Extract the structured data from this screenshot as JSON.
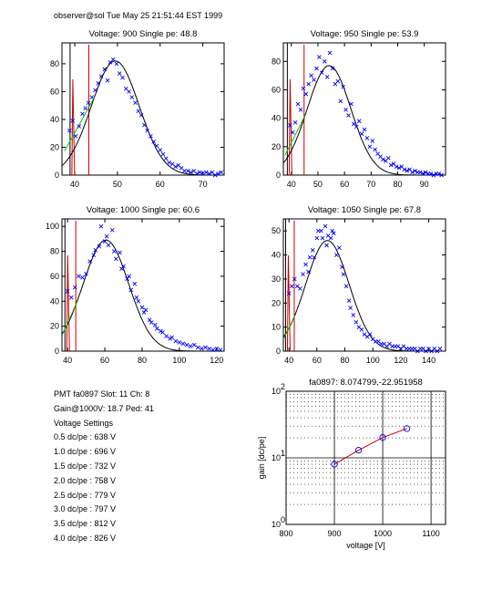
{
  "header": "observer@sol  Tue May 25 21:51:44 EST 1999",
  "pmt_info": {
    "line1": "PMT fa0897 Slot: 11 Ch: 8",
    "line2": "Gain@1000V: 18.7 Ped: 41",
    "settings_title": "Voltage Settings",
    "settings": [
      "0.5 dc/pe : 638 V",
      "1.0 dc/pe : 696 V",
      "1.5 dc/pe : 732 V",
      "2.0 dc/pe : 758 V",
      "2.5 dc/pe : 779 V",
      "3.0 dc/pe : 797 V",
      "3.5 dc/pe : 812 V",
      "4.0 dc/pe : 826 V"
    ]
  },
  "colors": {
    "data": "#0000ff",
    "fit": "#000000",
    "pedestal": "#cc0000",
    "low": "#00cc00"
  },
  "chart_data": [
    {
      "type": "scatter",
      "title": "Voltage: 900 Single pe: 48.8",
      "xlim": [
        37,
        75
      ],
      "ylim": [
        0,
        95
      ],
      "xticks": [
        40,
        50,
        60,
        70
      ],
      "yticks": [
        0,
        20,
        40,
        60,
        80
      ],
      "fit": {
        "amp": 82,
        "mean": 49.5,
        "sigma": 5.6
      },
      "markers": [
        38.9,
        43.3
      ],
      "points": [
        [
          38.8,
          32
        ],
        [
          39.5,
          39
        ],
        [
          40.2,
          28
        ],
        [
          41,
          35
        ],
        [
          41.8,
          44
        ],
        [
          42.5,
          48
        ],
        [
          43.2,
          52
        ],
        [
          44,
          56
        ],
        [
          44.8,
          61
        ],
        [
          45.5,
          66
        ],
        [
          46.2,
          71
        ],
        [
          47,
          76
        ],
        [
          47.7,
          68
        ],
        [
          48.3,
          81
        ],
        [
          49,
          83
        ],
        [
          49.8,
          80
        ],
        [
          50.5,
          73
        ],
        [
          51.2,
          70
        ],
        [
          52,
          62
        ],
        [
          52.7,
          60
        ],
        [
          53.4,
          56
        ],
        [
          54.2,
          52
        ],
        [
          54.9,
          46
        ],
        [
          55.6,
          43
        ],
        [
          56.3,
          36
        ],
        [
          57,
          32
        ],
        [
          57.8,
          28
        ],
        [
          58.5,
          24
        ],
        [
          59.2,
          21
        ],
        [
          60,
          18
        ],
        [
          60.7,
          15
        ],
        [
          61.4,
          12
        ],
        [
          62.1,
          9
        ],
        [
          62.9,
          8
        ],
        [
          63.6,
          6
        ],
        [
          64.3,
          7
        ],
        [
          65,
          5
        ],
        [
          65.7,
          3
        ],
        [
          66.5,
          3
        ],
        [
          67.2,
          2
        ],
        [
          67.9,
          3
        ],
        [
          68.6,
          1
        ],
        [
          69.3,
          2
        ],
        [
          70,
          1
        ],
        [
          70.8,
          2
        ],
        [
          71.5,
          1
        ],
        [
          72.2,
          2
        ],
        [
          72.9,
          0
        ],
        [
          73.6,
          1
        ],
        [
          74.3,
          2
        ]
      ]
    },
    {
      "type": "scatter",
      "title": "Voltage: 950 Single pe: 53.9",
      "xlim": [
        37,
        98
      ],
      "ylim": [
        0,
        93
      ],
      "xticks": [
        40,
        50,
        60,
        70,
        80,
        90
      ],
      "yticks": [
        0,
        20,
        40,
        60,
        80
      ],
      "fit": {
        "amp": 77,
        "mean": 54.2,
        "sigma": 8.2
      },
      "markers": [
        38.5,
        44.8
      ],
      "points": [
        [
          39.5,
          35
        ],
        [
          40.5,
          30
        ],
        [
          41.5,
          37
        ],
        [
          42.5,
          50
        ],
        [
          43.5,
          46
        ],
        [
          44.5,
          61
        ],
        [
          45.5,
          57
        ],
        [
          46.5,
          64
        ],
        [
          47.5,
          70
        ],
        [
          48.5,
          67
        ],
        [
          49.5,
          75
        ],
        [
          50.5,
          83
        ],
        [
          51.5,
          72
        ],
        [
          52.5,
          80
        ],
        [
          53.5,
          69
        ],
        [
          54.5,
          86
        ],
        [
          55.5,
          75
        ],
        [
          56.5,
          64
        ],
        [
          57.5,
          66
        ],
        [
          58.5,
          52
        ],
        [
          59.5,
          62
        ],
        [
          60.5,
          46
        ],
        [
          61.5,
          42
        ],
        [
          62.5,
          50
        ],
        [
          63.5,
          36
        ],
        [
          64.5,
          34
        ],
        [
          65.5,
          38
        ],
        [
          66.5,
          29
        ],
        [
          67.5,
          32
        ],
        [
          68.5,
          26
        ],
        [
          69.5,
          20
        ],
        [
          70.5,
          24
        ],
        [
          71.5,
          18
        ],
        [
          72.5,
          15
        ],
        [
          73.5,
          13
        ],
        [
          74.5,
          11
        ],
        [
          75.5,
          10
        ],
        [
          76.5,
          12
        ],
        [
          77.5,
          7
        ],
        [
          78.5,
          8
        ],
        [
          79.5,
          6
        ],
        [
          80.5,
          5
        ],
        [
          81.5,
          6
        ],
        [
          82.5,
          4
        ],
        [
          83.5,
          3
        ],
        [
          84.5,
          4
        ],
        [
          85.5,
          2
        ],
        [
          86.5,
          3
        ],
        [
          87.5,
          2
        ],
        [
          88.5,
          2
        ],
        [
          89.5,
          1
        ],
        [
          90.5,
          2
        ],
        [
          91.5,
          1
        ],
        [
          92.5,
          1
        ],
        [
          93.5,
          0
        ],
        [
          94.5,
          1
        ],
        [
          95.5,
          1
        ],
        [
          96.5,
          0
        ]
      ]
    },
    {
      "type": "scatter",
      "title": "Voltage: 1000 Single pe: 60.6",
      "xlim": [
        37,
        124
      ],
      "ylim": [
        0,
        106
      ],
      "xticks": [
        40,
        60,
        80,
        100,
        120
      ],
      "yticks": [
        0,
        20,
        40,
        60,
        80,
        100
      ],
      "fit": {
        "amp": 89,
        "mean": 60.6,
        "sigma": 12.2
      },
      "markers": [
        38.6,
        44.4
      ],
      "points": [
        [
          40,
          48
        ],
        [
          42,
          43
        ],
        [
          44,
          51
        ],
        [
          46,
          60
        ],
        [
          48,
          59
        ],
        [
          50,
          62
        ],
        [
          52,
          72
        ],
        [
          54,
          77
        ],
        [
          55,
          81
        ],
        [
          57,
          84
        ],
        [
          58,
          100
        ],
        [
          60,
          88
        ],
        [
          61,
          92
        ],
        [
          62,
          85
        ],
        [
          64,
          97
        ],
        [
          65,
          80
        ],
        [
          66,
          74
        ],
        [
          68,
          79
        ],
        [
          69,
          66
        ],
        [
          70,
          68
        ],
        [
          72,
          58
        ],
        [
          73,
          60
        ],
        [
          74,
          49
        ],
        [
          76,
          54
        ],
        [
          77,
          43
        ],
        [
          78,
          40
        ],
        [
          80,
          35
        ],
        [
          81,
          31
        ],
        [
          82,
          33
        ],
        [
          84,
          25
        ],
        [
          85,
          23
        ],
        [
          87,
          21
        ],
        [
          88,
          18
        ],
        [
          90,
          16
        ],
        [
          91,
          15
        ],
        [
          93,
          12
        ],
        [
          95,
          10
        ],
        [
          96,
          11
        ],
        [
          98,
          8
        ],
        [
          100,
          7
        ],
        [
          102,
          6
        ],
        [
          104,
          5
        ],
        [
          106,
          4
        ],
        [
          108,
          5
        ],
        [
          110,
          3
        ],
        [
          112,
          2
        ],
        [
          114,
          3
        ],
        [
          116,
          2
        ],
        [
          118,
          1
        ],
        [
          120,
          2
        ],
        [
          122,
          1
        ]
      ]
    },
    {
      "type": "scatter",
      "title": "Voltage: 1050 Single pe: 67.8",
      "xlim": [
        36,
        152
      ],
      "ylim": [
        0,
        55
      ],
      "xticks": [
        40,
        60,
        80,
        100,
        120,
        140
      ],
      "yticks": [
        0,
        10,
        20,
        30,
        40,
        50
      ],
      "fit": {
        "amp": 46,
        "mean": 67.5,
        "sigma": 15.5
      },
      "markers": [
        37.6,
        43.8
      ],
      "points": [
        [
          40,
          24
        ],
        [
          42,
          27
        ],
        [
          44,
          30
        ],
        [
          46,
          27
        ],
        [
          48,
          26
        ],
        [
          50,
          32
        ],
        [
          52,
          36
        ],
        [
          54,
          33
        ],
        [
          55,
          39
        ],
        [
          57,
          42
        ],
        [
          58,
          39
        ],
        [
          60,
          47
        ],
        [
          61,
          50
        ],
        [
          63,
          50
        ],
        [
          64,
          47
        ],
        [
          66,
          52
        ],
        [
          67,
          44
        ],
        [
          68,
          48
        ],
        [
          70,
          47
        ],
        [
          71,
          50
        ],
        [
          72,
          49
        ],
        [
          74,
          40
        ],
        [
          76,
          43
        ],
        [
          78,
          35
        ],
        [
          79,
          32
        ],
        [
          81,
          27
        ],
        [
          83,
          21
        ],
        [
          84,
          18
        ],
        [
          86,
          15
        ],
        [
          88,
          12
        ],
        [
          90,
          10
        ],
        [
          92,
          9
        ],
        [
          94,
          7
        ],
        [
          96,
          6
        ],
        [
          98,
          7
        ],
        [
          100,
          5
        ],
        [
          102,
          4
        ],
        [
          104,
          4
        ],
        [
          106,
          3
        ],
        [
          108,
          3
        ],
        [
          110,
          2
        ],
        [
          112,
          3
        ],
        [
          114,
          2
        ],
        [
          116,
          2
        ],
        [
          118,
          2
        ],
        [
          120,
          1
        ],
        [
          122,
          2
        ],
        [
          124,
          1
        ],
        [
          126,
          1
        ],
        [
          128,
          1
        ],
        [
          130,
          1
        ],
        [
          132,
          0
        ],
        [
          134,
          1
        ],
        [
          136,
          1
        ],
        [
          138,
          0
        ],
        [
          140,
          1
        ],
        [
          142,
          0
        ],
        [
          144,
          1
        ],
        [
          146,
          0
        ],
        [
          148,
          1
        ]
      ]
    },
    {
      "type": "line",
      "title": "fa0897: 8.074799,-22.951958",
      "xlabel": "voltage [V]",
      "ylabel": "gain [dc/pe]",
      "xlim": [
        800,
        1130
      ],
      "ylim": [
        1,
        100
      ],
      "yscale": "log",
      "xticks": [
        800,
        900,
        1000,
        1100
      ],
      "yticks": [
        1,
        10,
        100
      ],
      "ytick_labels": [
        [
          "10",
          "0"
        ],
        [
          "10",
          "1"
        ],
        [
          "10",
          "2"
        ]
      ],
      "grid": "dotted",
      "x": [
        900,
        950,
        1000,
        1050
      ],
      "y": [
        8.0,
        13.0,
        20.2,
        27.5
      ]
    }
  ]
}
